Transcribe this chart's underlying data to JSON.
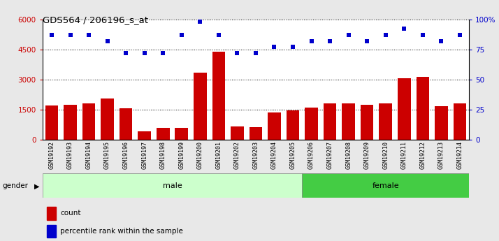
{
  "title": "GDS564 / 206196_s_at",
  "samples": [
    "GSM19192",
    "GSM19193",
    "GSM19194",
    "GSM19195",
    "GSM19196",
    "GSM19197",
    "GSM19198",
    "GSM19199",
    "GSM19200",
    "GSM19201",
    "GSM19202",
    "GSM19203",
    "GSM19204",
    "GSM19205",
    "GSM19206",
    "GSM19207",
    "GSM19208",
    "GSM19209",
    "GSM19210",
    "GSM19211",
    "GSM19212",
    "GSM19213",
    "GSM19214"
  ],
  "counts": [
    1700,
    1750,
    1820,
    2050,
    1560,
    430,
    580,
    580,
    3350,
    4380,
    680,
    640,
    1350,
    1450,
    1620,
    1800,
    1810,
    1760,
    1810,
    3080,
    3130,
    1690,
    1810
  ],
  "percentile_ranks_pct": [
    87,
    87,
    87,
    82,
    72,
    72,
    72,
    87,
    98,
    87,
    72,
    72,
    77,
    77,
    82,
    82,
    87,
    82,
    87,
    92,
    87,
    82,
    87
  ],
  "gender": [
    "male",
    "male",
    "male",
    "male",
    "male",
    "male",
    "male",
    "male",
    "male",
    "male",
    "male",
    "male",
    "male",
    "male",
    "female",
    "female",
    "female",
    "female",
    "female",
    "female",
    "female",
    "female",
    "female"
  ],
  "male_color_light": "#ccffcc",
  "female_color_light": "#44cc44",
  "bar_color": "#cc0000",
  "dot_color": "#0000cc",
  "ylim_left": [
    0,
    6000
  ],
  "ylim_right": [
    0,
    100
  ],
  "yticks_left": [
    0,
    1500,
    3000,
    4500,
    6000
  ],
  "yticks_right": [
    0,
    25,
    50,
    75,
    100
  ],
  "ytick_labels_left": [
    "0",
    "1500",
    "3000",
    "4500",
    "6000"
  ],
  "ytick_labels_right": [
    "0",
    "25",
    "50",
    "75",
    "100%"
  ],
  "fig_bg_color": "#e8e8e8"
}
